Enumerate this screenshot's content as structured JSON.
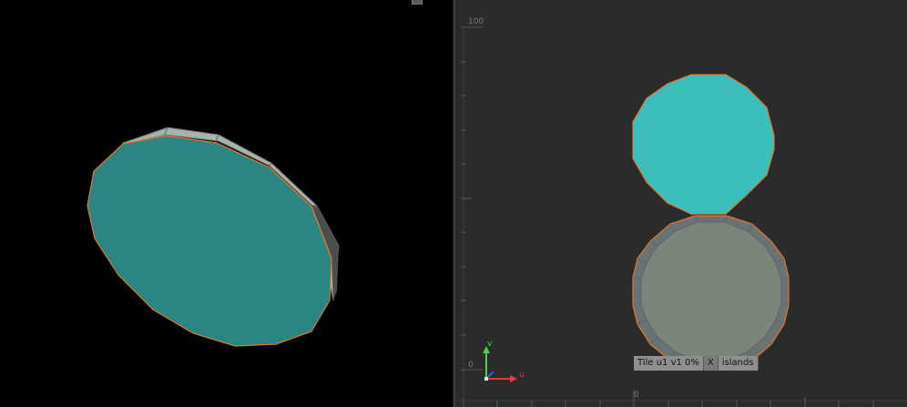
{
  "viewport3d": {
    "name": "perspective"
  },
  "uv_editor": {
    "v_top_label": "100",
    "v_origin_label": "0",
    "u_origin_label": "0",
    "axis_v_label": "v",
    "axis_u_label": "u",
    "status": {
      "tile": "Tile u1 v1 0%",
      "close": "X",
      "islands": "islands"
    }
  },
  "colors": {
    "selected_face": "#3bbfbc",
    "face_dark": "#2a8280",
    "unselected_face": "#7b857a",
    "edge_highlight": "#e07832",
    "axis_v": "#46d447",
    "axis_u": "#e23a3a"
  }
}
